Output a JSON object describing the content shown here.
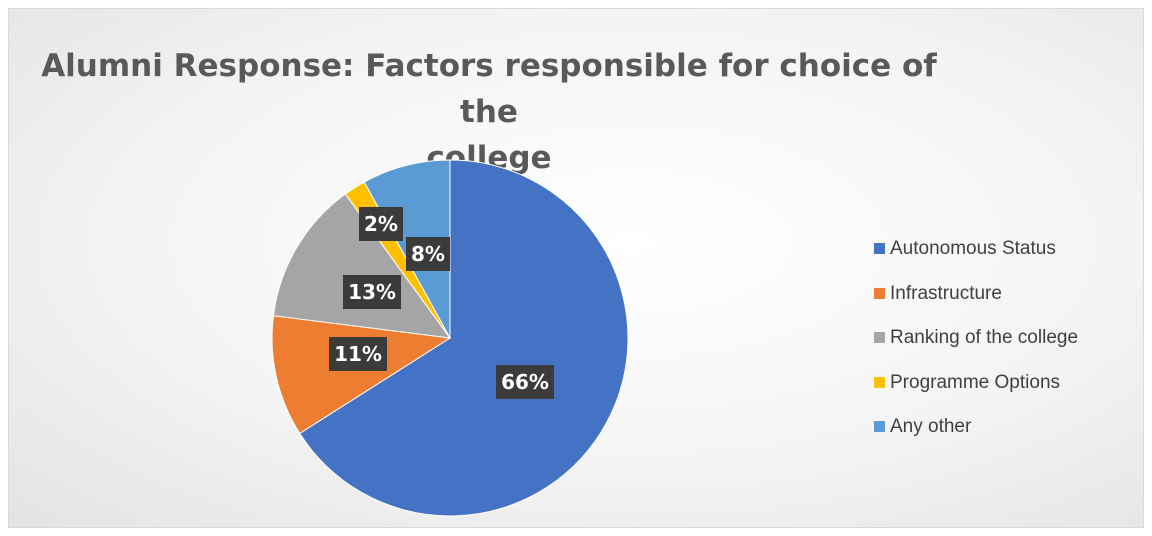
{
  "chart_data": {
    "type": "pie",
    "title_line1": "Alumni Response: Factors responsible for choice of the",
    "title_line2": "college",
    "slices": [
      {
        "label": "Autonomous Status",
        "legend_text": "Autonomous Status",
        "value": 66,
        "display": "66%",
        "color": "#4472C4"
      },
      {
        "label": "Infrastructure",
        "legend_text": " Infrastructure",
        "value": 11,
        "display": "11%",
        "color": "#ED7D31"
      },
      {
        "label": "Ranking of the college",
        "legend_text": "Ranking of the college",
        "value": 13,
        "display": "13%",
        "color": "#A5A5A5"
      },
      {
        "label": "Programme Options",
        "legend_text": " Programme Options",
        "value": 2,
        "display": "2%",
        "color": "#FFC000"
      },
      {
        "label": "Any other",
        "legend_text": "Any other",
        "value": 8,
        "display": "8%",
        "color": "#5B9BD5"
      }
    ],
    "legend_position": "right"
  }
}
